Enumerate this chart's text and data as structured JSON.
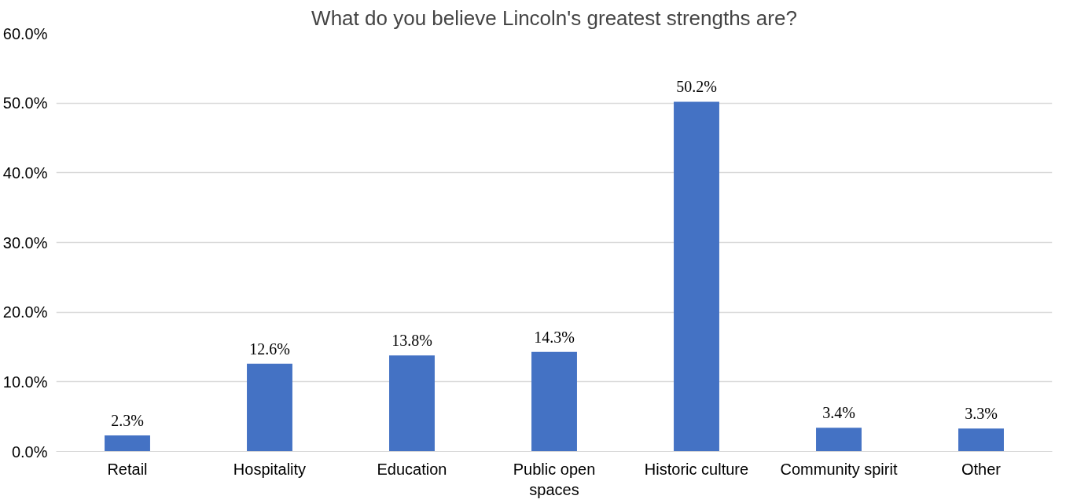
{
  "chart_data": {
    "type": "bar",
    "title": "What do you believe Lincoln's greatest strengths are?",
    "categories": [
      "Retail",
      "Hospitality",
      "Education",
      "Public open spaces",
      "Historic culture",
      "Community spirit",
      "Other"
    ],
    "values": [
      2.3,
      12.6,
      13.8,
      14.3,
      50.2,
      3.4,
      3.3
    ],
    "value_labels": [
      "2.3%",
      "12.6%",
      "13.8%",
      "14.3%",
      "50.2%",
      "3.4%",
      "3.3%"
    ],
    "color": "#4472c4",
    "ylim": [
      0,
      60
    ],
    "yticks": [
      {
        "value": 0,
        "label": "0.0%"
      },
      {
        "value": 10,
        "label": "10.0%"
      },
      {
        "value": 20,
        "label": "20.0%"
      },
      {
        "value": 30,
        "label": "30.0%"
      },
      {
        "value": 40,
        "label": "40.0%"
      },
      {
        "value": 50,
        "label": "50.0%"
      },
      {
        "value": 60,
        "label": "60.0%"
      }
    ],
    "grid": "y"
  }
}
